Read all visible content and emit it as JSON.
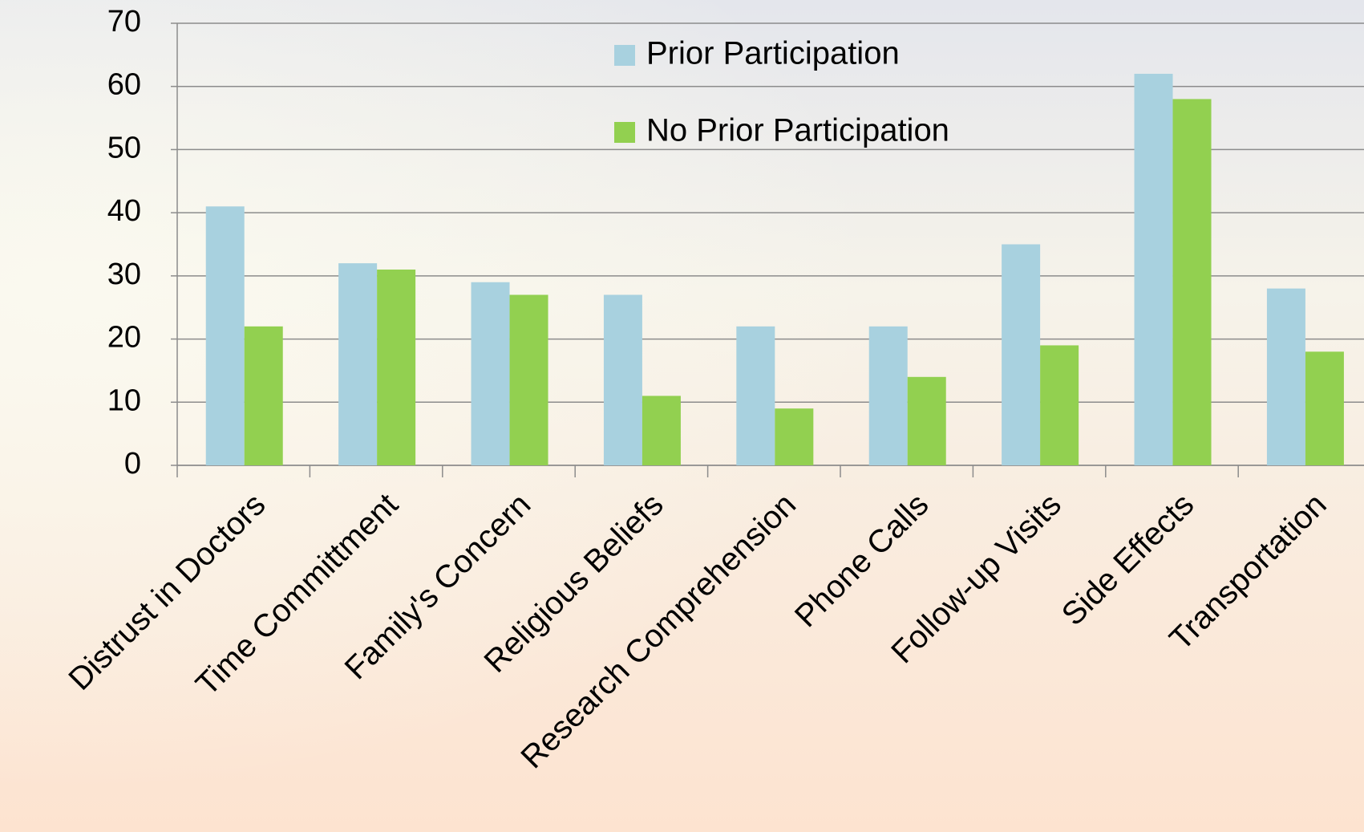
{
  "chart_data": {
    "type": "bar",
    "categories": [
      "Distrust in Doctors",
      "Time Committment",
      "Family's Concern",
      "Religious Beliefs",
      "Research Comprehension",
      "Phone Calls",
      "Follow-up Visits",
      "Side Effects",
      "Transportation"
    ],
    "series": [
      {
        "name": "Prior Participation",
        "color": "#a8d1df",
        "values": [
          41,
          32,
          29,
          27,
          22,
          22,
          35,
          62,
          28
        ]
      },
      {
        "name": "No Prior Participation",
        "color": "#92d050",
        "values": [
          22,
          31,
          27,
          11,
          9,
          14,
          19,
          58,
          18
        ]
      }
    ],
    "ylim": [
      0,
      70
    ],
    "yticks": [
      0,
      10,
      20,
      30,
      40,
      50,
      60,
      70
    ],
    "grid": true
  }
}
